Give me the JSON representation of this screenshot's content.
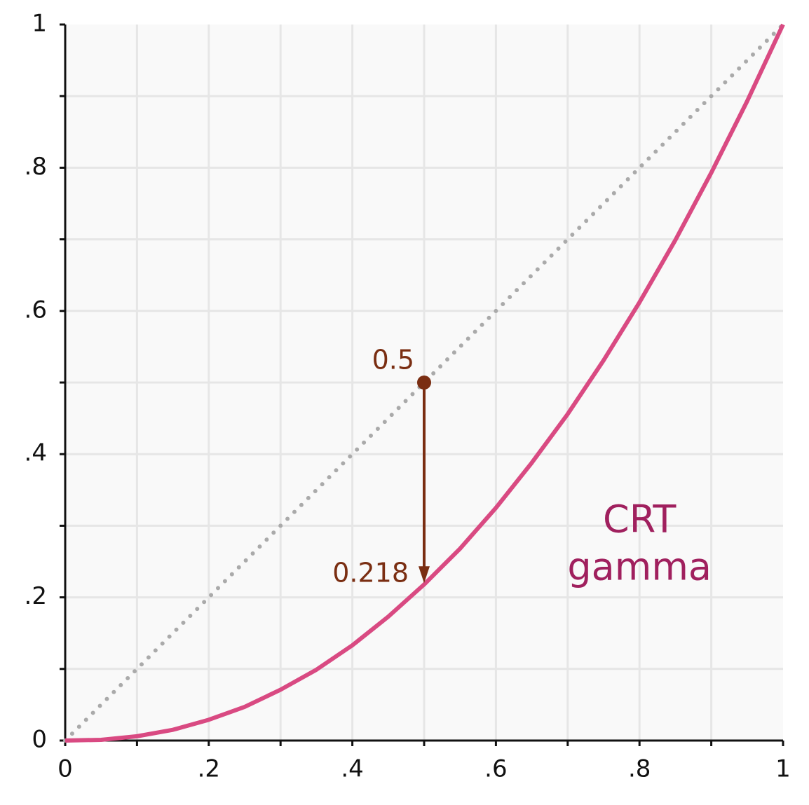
{
  "chart_data": {
    "type": "line",
    "x": [
      0,
      0.05,
      0.1,
      0.15,
      0.2,
      0.25,
      0.3,
      0.35,
      0.4,
      0.45,
      0.5,
      0.55,
      0.6,
      0.65,
      0.7,
      0.75,
      0.8,
      0.85,
      0.9,
      0.95,
      1
    ],
    "series": [
      {
        "color": "#aaaaaa",
        "style": "dotted",
        "values": [
          0,
          0.05,
          0.1,
          0.15,
          0.2,
          0.25,
          0.3,
          0.35,
          0.4,
          0.45,
          0.5,
          0.55,
          0.6,
          0.65,
          0.7,
          0.75,
          0.8,
          0.85,
          0.9,
          0.95,
          1
        ]
      },
      {
        "color": "#d94a82",
        "style": "solid",
        "values": [
          0,
          0.001,
          0.006,
          0.015,
          0.029,
          0.047,
          0.071,
          0.099,
          0.133,
          0.173,
          0.218,
          0.268,
          0.325,
          0.388,
          0.456,
          0.531,
          0.612,
          0.699,
          0.793,
          0.893,
          1
        ]
      }
    ],
    "curve_label": [
      "CRT",
      "gamma"
    ],
    "curve_label_color": "#a0205e",
    "annotation": {
      "x": 0.5,
      "from": 0.5,
      "to": 0.218,
      "color": "#7a2e12"
    },
    "xlim": [
      0,
      1
    ],
    "ylim": [
      0,
      1
    ],
    "xticks": [
      0,
      {
        "value": 0.2,
        "label": ".2"
      },
      {
        "value": 0.4,
        "label": ".4"
      },
      {
        "value": 0.6,
        "label": ".6"
      },
      {
        "value": 0.8,
        "label": ".8"
      },
      1
    ],
    "yticks": [
      0,
      {
        "value": 0.2,
        "label": ".2"
      },
      {
        "value": 0.4,
        "label": ".4"
      },
      {
        "value": 0.6,
        "label": ".6"
      },
      {
        "value": 0.8,
        "label": ".8"
      },
      1
    ],
    "minor_ticks": [
      0.1,
      0.3,
      0.5,
      0.7,
      0.9
    ],
    "grid": true
  }
}
